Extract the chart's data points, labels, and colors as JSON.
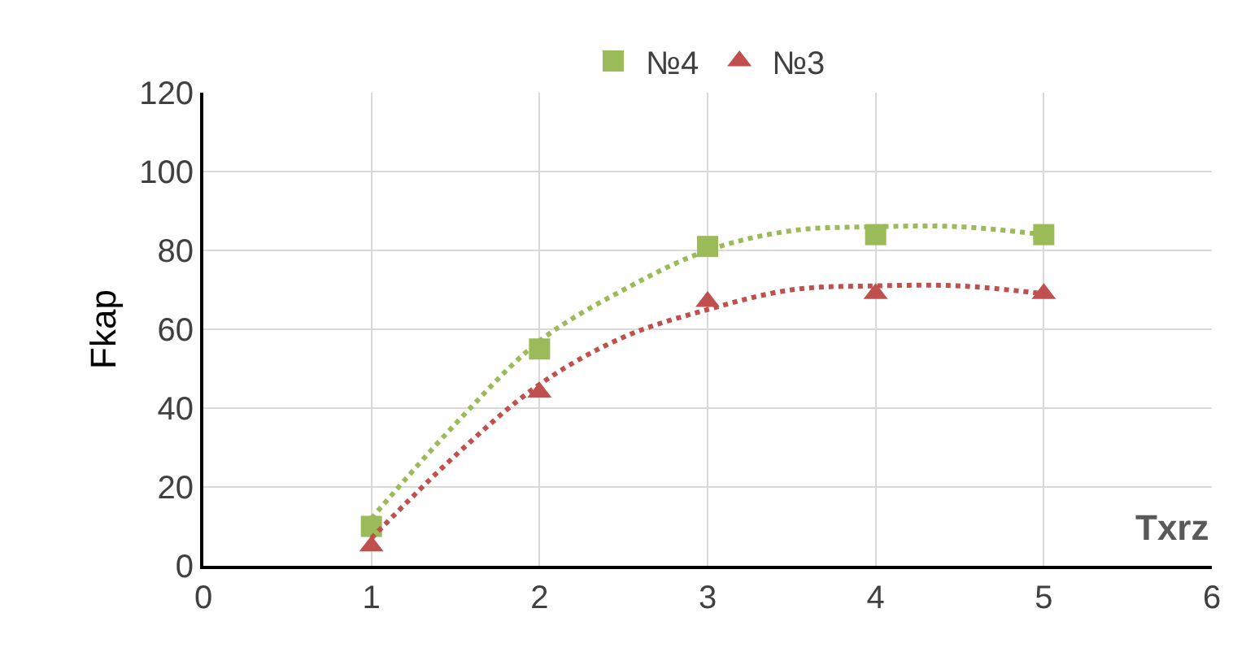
{
  "chart_data": {
    "type": "scatter",
    "xlabel": "Txrz",
    "ylabel": "Fkap",
    "xlim": [
      0,
      6
    ],
    "xticks": [
      0,
      1,
      2,
      3,
      4,
      5,
      6
    ],
    "ylim": [
      0,
      120
    ],
    "yticks": [
      0,
      20,
      40,
      60,
      80,
      100,
      120
    ],
    "grid": true,
    "legend": "top",
    "series": [
      {
        "name": "№4",
        "color": "#9bbb59",
        "marker": "square",
        "x": [
          1,
          2,
          3,
          4,
          5
        ],
        "values": [
          10,
          55,
          81,
          84,
          84
        ]
      },
      {
        "name": "№3",
        "color": "#c0504d",
        "marker": "triangle",
        "x": [
          1,
          2,
          3,
          4,
          5
        ],
        "values": [
          5,
          44,
          67,
          69,
          69
        ]
      },
      {
        "type": "line",
        "color": "#9bbb59",
        "marker": "none",
        "line_style": "dotted",
        "x": [
          1,
          1.5,
          2,
          2.5,
          3,
          3.5,
          4,
          4.5,
          5
        ],
        "values": [
          12,
          36,
          57,
          70,
          80,
          85,
          86,
          86,
          84
        ]
      },
      {
        "type": "line",
        "color": "#c0504d",
        "marker": "none",
        "line_style": "dotted",
        "x": [
          1,
          1.5,
          2,
          2.5,
          3,
          3.5,
          4,
          4.5,
          5
        ],
        "values": [
          7,
          28,
          46,
          58,
          65,
          70,
          71,
          71,
          69
        ]
      }
    ]
  }
}
